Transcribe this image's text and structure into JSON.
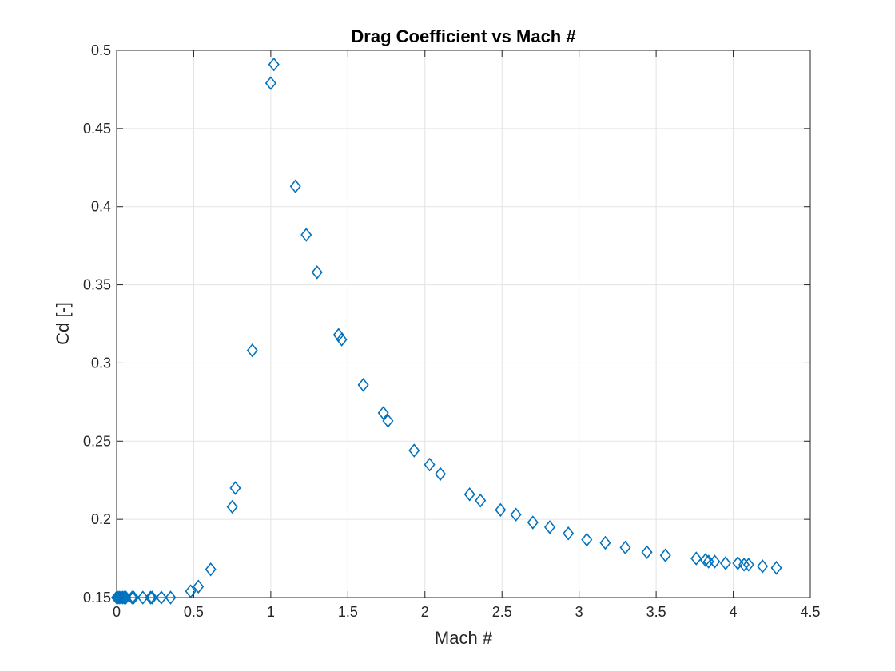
{
  "chart_data": {
    "type": "scatter",
    "title": "Drag Coefficient vs Mach #",
    "xlabel": "Mach #",
    "ylabel": "Cd [-]",
    "xlim": [
      0,
      4.5
    ],
    "ylim": [
      0.15,
      0.5
    ],
    "xticks": [
      "0",
      "0.5",
      "1",
      "1.5",
      "2",
      "2.5",
      "3",
      "3.5",
      "4",
      "4.5"
    ],
    "yticks": [
      "0.15",
      "0.2",
      "0.25",
      "0.3",
      "0.35",
      "0.4",
      "0.45",
      "0.5"
    ],
    "grid": true,
    "marker": "diamond",
    "marker_color": "#0072bd",
    "series": [
      {
        "x": [
          0.0,
          0.01,
          0.02,
          0.03,
          0.04,
          0.05,
          0.06,
          0.1,
          0.11,
          0.17,
          0.22,
          0.23,
          0.29,
          0.35,
          0.48,
          0.53,
          0.61,
          0.75,
          0.77,
          0.88,
          1.0,
          1.02,
          1.16,
          1.23,
          1.3,
          1.44,
          1.46,
          1.6,
          1.73,
          1.76,
          1.93,
          2.03,
          2.1,
          2.29,
          2.36,
          2.49,
          2.59,
          2.7,
          2.81,
          2.93,
          3.05,
          3.17,
          3.3,
          3.44,
          3.56,
          3.76,
          3.82,
          3.84,
          3.88,
          3.95,
          4.03,
          4.07,
          4.1,
          4.19,
          4.28
        ],
        "y": [
          0.15,
          0.15,
          0.15,
          0.15,
          0.15,
          0.15,
          0.15,
          0.15,
          0.15,
          0.15,
          0.15,
          0.15,
          0.15,
          0.15,
          0.154,
          0.157,
          0.168,
          0.208,
          0.22,
          0.308,
          0.479,
          0.491,
          0.413,
          0.382,
          0.358,
          0.318,
          0.315,
          0.286,
          0.268,
          0.263,
          0.244,
          0.235,
          0.229,
          0.216,
          0.212,
          0.206,
          0.203,
          0.198,
          0.195,
          0.191,
          0.187,
          0.185,
          0.182,
          0.179,
          0.177,
          0.175,
          0.174,
          0.173,
          0.173,
          0.172,
          0.172,
          0.171,
          0.171,
          0.17,
          0.169
        ]
      }
    ]
  }
}
